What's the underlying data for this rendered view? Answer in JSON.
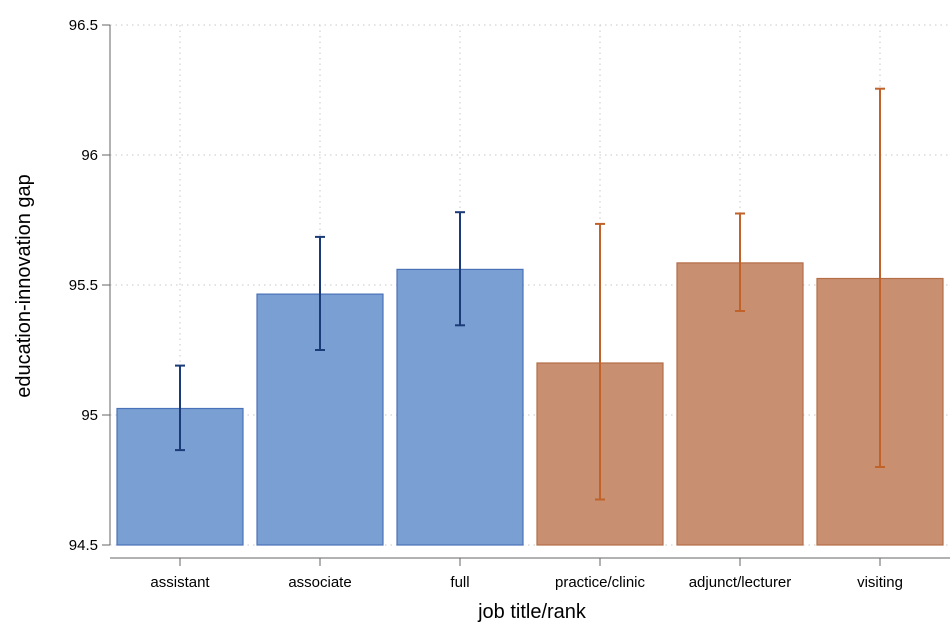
{
  "chart_data": {
    "type": "bar",
    "title": "",
    "xlabel": "job title/rank",
    "ylabel": "education-innovation gap",
    "ylim": [
      94.5,
      96.5
    ],
    "yticks": [
      "94.5",
      "95",
      "95.5",
      "96",
      "96.5"
    ],
    "grid": true,
    "categories": [
      "assistant",
      "associate",
      "full",
      "practice/clinic",
      "adjunct/lecturer",
      "visiting"
    ],
    "values": [
      95.025,
      95.465,
      95.56,
      95.2,
      95.585,
      95.525
    ],
    "error_low": [
      94.865,
      95.25,
      95.345,
      94.675,
      95.4,
      94.8
    ],
    "error_high": [
      95.19,
      95.685,
      95.78,
      95.735,
      95.775,
      96.255
    ],
    "colors": [
      "#7a9fd3",
      "#7a9fd3",
      "#7a9fd3",
      "#c88f70",
      "#c88f70",
      "#c88f70"
    ],
    "error_colors": [
      "#1b3a78",
      "#1b3a78",
      "#1b3a78",
      "#c0622a",
      "#c0622a",
      "#c0622a"
    ]
  }
}
